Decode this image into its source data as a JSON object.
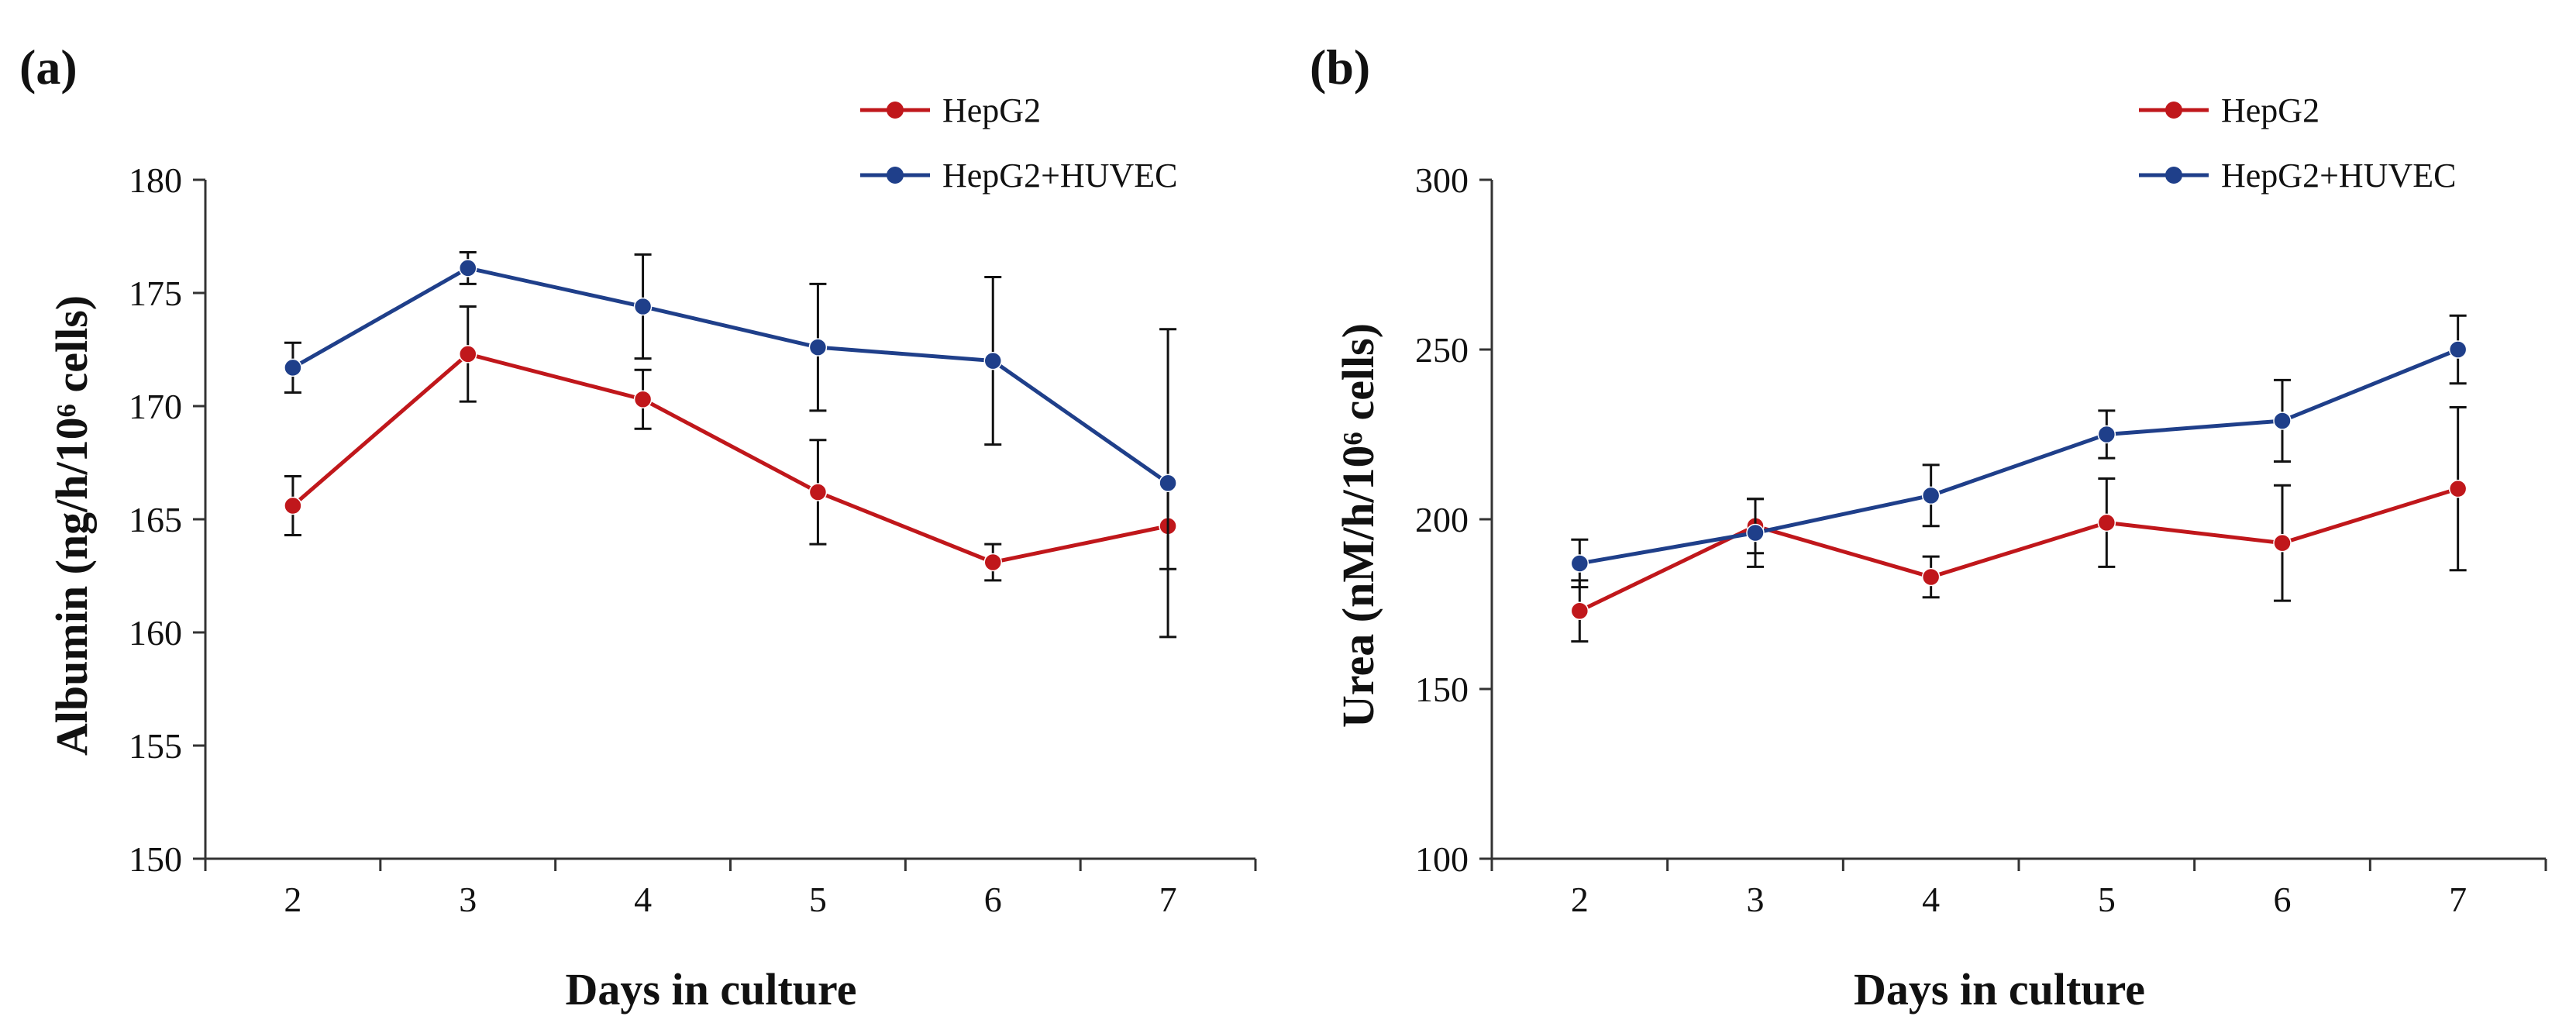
{
  "chart_data": [
    {
      "type": "line",
      "panel_label": "(a)",
      "title": "",
      "xlabel": "Days in culture",
      "ylabel": "Albumin (ng/h/10⁶ cells)",
      "categories": [
        "2",
        "3",
        "4",
        "5",
        "6",
        "7"
      ],
      "ylim": [
        150,
        180
      ],
      "yticks": [
        150,
        155,
        160,
        165,
        170,
        175,
        180
      ],
      "legend_position": "top-right",
      "series": [
        {
          "name": "HepG2",
          "color": "#c0171b",
          "values": [
            165.6,
            172.3,
            170.3,
            166.2,
            163.1,
            164.7
          ],
          "errors": [
            1.3,
            2.1,
            1.3,
            2.3,
            0.8,
            1.9
          ]
        },
        {
          "name": "HepG2+HUVEC",
          "color": "#1f3f8a",
          "values": [
            171.7,
            176.1,
            174.4,
            172.6,
            172.0,
            166.6
          ],
          "errors": [
            1.1,
            0.7,
            2.3,
            2.8,
            3.7,
            6.8
          ]
        }
      ]
    },
    {
      "type": "line",
      "panel_label": "(b)",
      "title": "",
      "xlabel": "Days in culture",
      "ylabel": "Urea (nM/h/10⁶ cells)",
      "categories": [
        "2",
        "3",
        "4",
        "5",
        "6",
        "7"
      ],
      "ylim": [
        100,
        300
      ],
      "yticks": [
        100,
        150,
        200,
        250,
        300
      ],
      "legend_position": "top-right",
      "series": [
        {
          "name": "HepG2",
          "color": "#c0171b",
          "values": [
            173,
            198,
            183,
            199,
            193,
            209
          ],
          "errors": [
            9,
            8,
            6,
            13,
            17,
            24
          ]
        },
        {
          "name": "HepG2+HUVEC",
          "color": "#1f3f8a",
          "values": [
            187,
            196,
            207,
            225,
            229,
            250
          ],
          "errors": [
            7,
            10,
            9,
            7,
            12,
            10
          ]
        }
      ]
    }
  ]
}
